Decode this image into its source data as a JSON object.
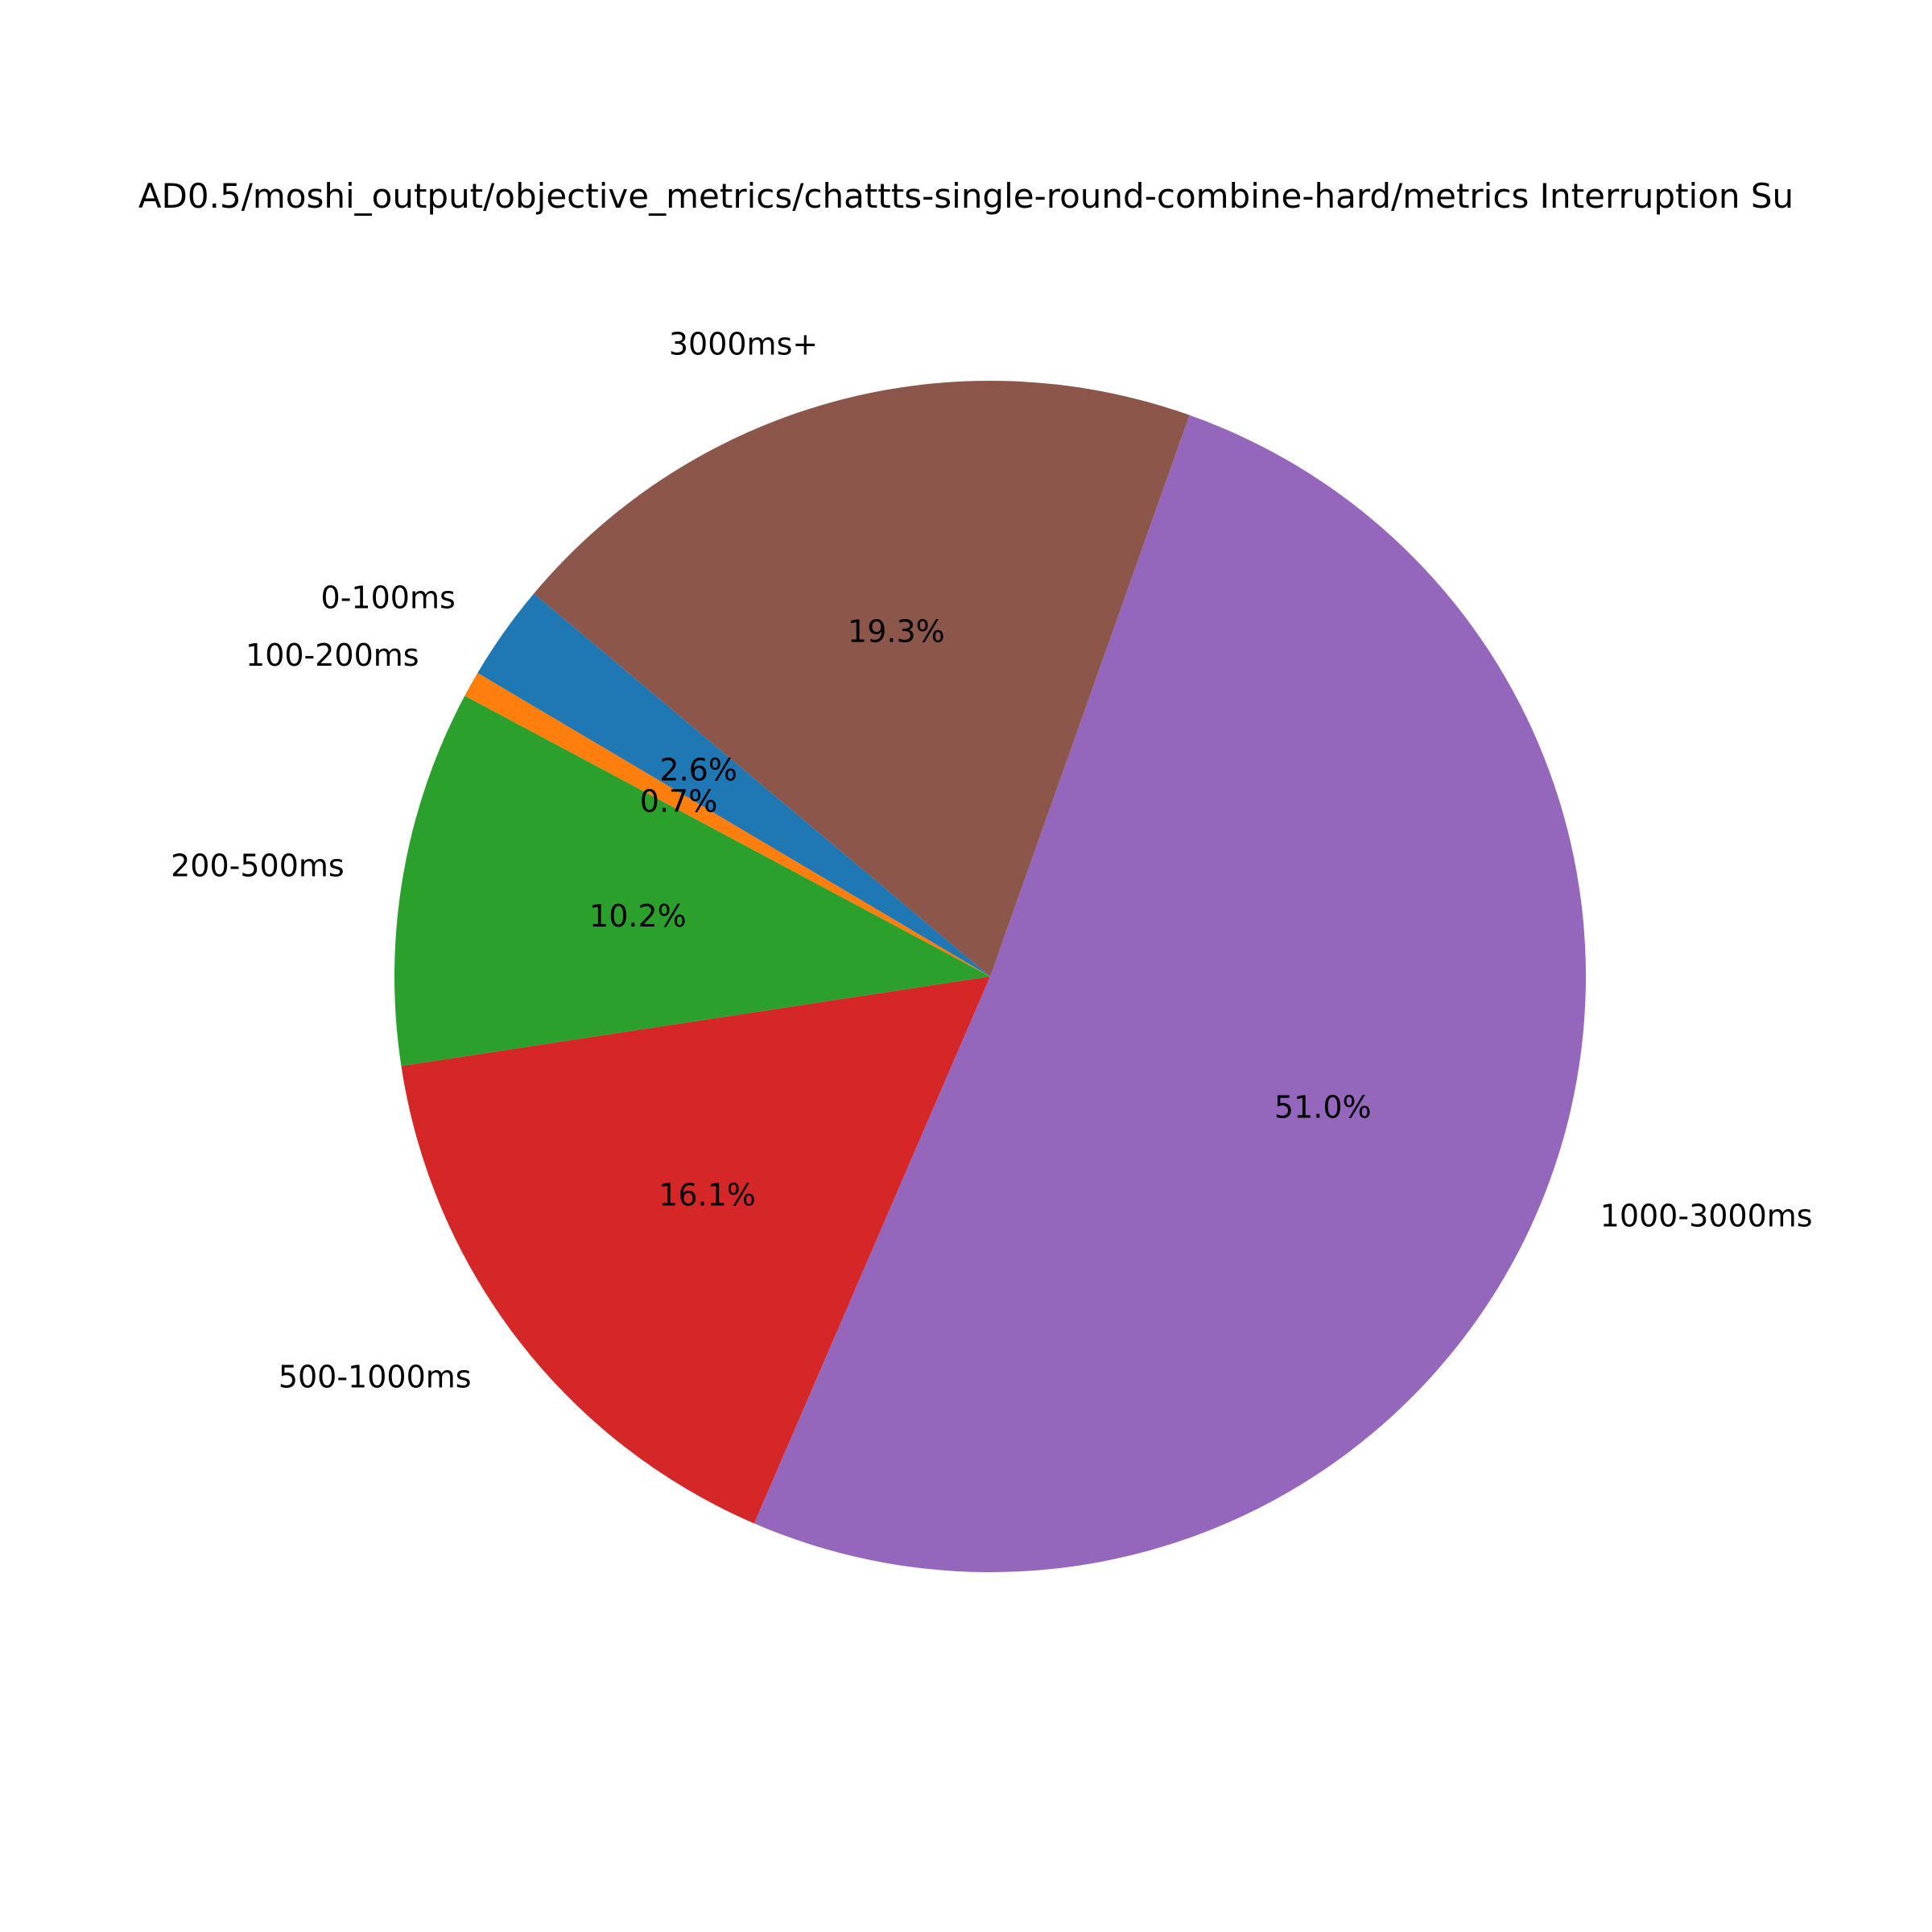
{
  "chart_data": {
    "type": "pie",
    "title": "AD0.5/moshi_output/objective_metrics/chattts-single-round-combine-hard/metrics Interruption Su",
    "start_angle_deg": 140,
    "direction": "counterclockwise",
    "slices": [
      {
        "label": "0-100ms",
        "value": 2.6,
        "pct_label": "2.6%",
        "color": "#1f77b4"
      },
      {
        "label": "100-200ms",
        "value": 0.7,
        "pct_label": "0.7%",
        "color": "#ff7f0e"
      },
      {
        "label": "200-500ms",
        "value": 10.2,
        "pct_label": "10.2%",
        "color": "#2ca02c"
      },
      {
        "label": "500-1000ms",
        "value": 16.1,
        "pct_label": "16.1%",
        "color": "#d62728"
      },
      {
        "label": "1000-3000ms",
        "value": 51.0,
        "pct_label": "51.0%",
        "color": "#9467bd"
      },
      {
        "label": "3000ms+",
        "value": 19.3,
        "pct_label": "19.3%",
        "color": "#8c564b"
      }
    ]
  }
}
